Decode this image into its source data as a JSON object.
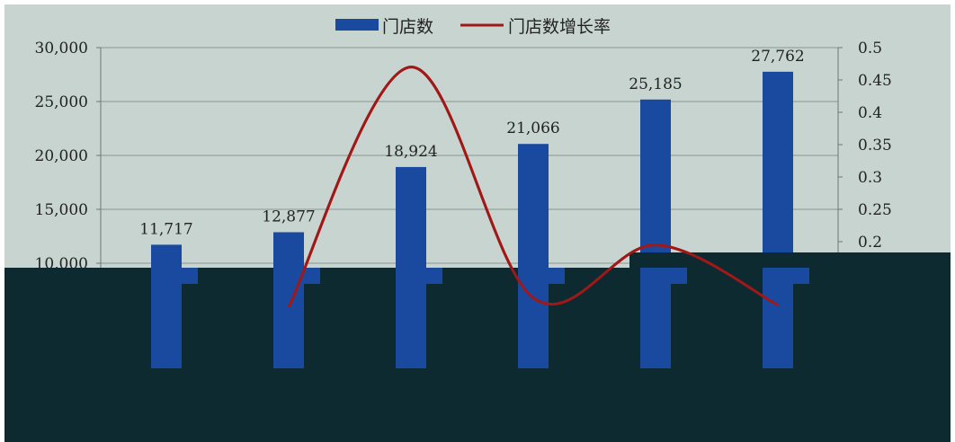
{
  "chart_data": {
    "type": "bar",
    "legend_position": "top",
    "grid": true,
    "categories": [
      "",
      "",
      "",
      "",
      "",
      ""
    ],
    "series": [
      {
        "name": "门店数",
        "type": "bar",
        "axis": "left",
        "values": [
          11717,
          12877,
          18924,
          21066,
          25185,
          27762
        ],
        "data_labels": [
          "11,717",
          "12,877",
          "18,924",
          "21,066",
          "25,185",
          "27,762"
        ]
      },
      {
        "name": "门店数增长率",
        "type": "line",
        "smooth": true,
        "axis": "right",
        "values": [
          null,
          0.099,
          0.47,
          0.113,
          0.195,
          0.102
        ]
      }
    ],
    "y_left": {
      "ylim": [
        0,
        30000
      ],
      "ticks_shown": [
        10000,
        15000,
        20000,
        25000,
        30000
      ],
      "tick_labels": [
        "10,000",
        "15,000",
        "20,000",
        "25,000",
        "30,000"
      ]
    },
    "y_right": {
      "ylim": [
        0,
        0.5
      ],
      "ticks_shown": [
        0.2,
        0.25,
        0.3,
        0.35,
        0.4,
        0.45,
        0.5
      ],
      "tick_labels": [
        "0.2",
        "0.25",
        "0.3",
        "0.35",
        "0.4",
        "0.45",
        "0.5"
      ]
    },
    "colors": {
      "plot_bg": "#c8d4cf",
      "bar": "#1a4aa0",
      "line": "#a01818",
      "occluder": "#0c2a2f",
      "grid": "#8a9692"
    }
  }
}
